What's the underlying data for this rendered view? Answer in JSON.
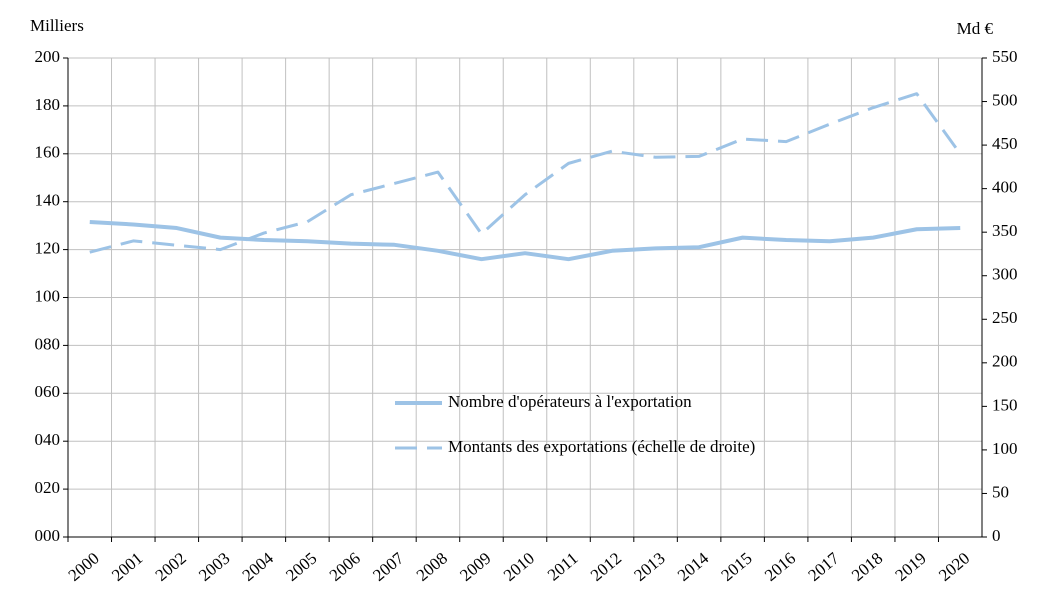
{
  "chart_data": {
    "type": "line",
    "y_label": "Milliers",
    "y2_label": "Md €",
    "categories": [
      "2000",
      "2001",
      "2002",
      "2003",
      "2004",
      "2005",
      "2006",
      "2007",
      "2008",
      "2009",
      "2010",
      "2011",
      "2012",
      "2013",
      "2014",
      "2015",
      "2016",
      "2017",
      "2018",
      "2019",
      "2020"
    ],
    "series": [
      {
        "name": "Nombre d'opérateurs à l'exportation",
        "color": "#9dc3e6",
        "style": "solid",
        "values": [
          131.5,
          130.5,
          129,
          125,
          124,
          123.5,
          122.5,
          122,
          119.5,
          116,
          118.5,
          116,
          119.5,
          120.5,
          121,
          125,
          124,
          123.5,
          125,
          128.5,
          129
        ]
      },
      {
        "name": "Montants des exportations (échelle de droite)",
        "color": "#9dc3e6",
        "style": "dashed",
        "axis": "y2",
        "values": [
          327,
          340,
          335,
          330,
          349,
          362,
          393,
          406,
          419,
          348,
          393,
          429,
          443,
          436,
          437,
          457,
          454,
          474,
          493,
          509,
          440
        ]
      }
    ],
    "ylim": [
      0,
      200
    ],
    "yticks": [
      {
        "value": 0,
        "label": "000"
      },
      {
        "value": 20,
        "label": "020"
      },
      {
        "value": 40,
        "label": "040"
      },
      {
        "value": 60,
        "label": "060"
      },
      {
        "value": 80,
        "label": "080"
      },
      100,
      120,
      140,
      160,
      180,
      200
    ],
    "y2lim": [
      0,
      550
    ],
    "y2ticks": [
      0,
      50,
      100,
      150,
      200,
      250,
      300,
      350,
      400,
      450,
      500,
      550
    ],
    "grid": true
  }
}
